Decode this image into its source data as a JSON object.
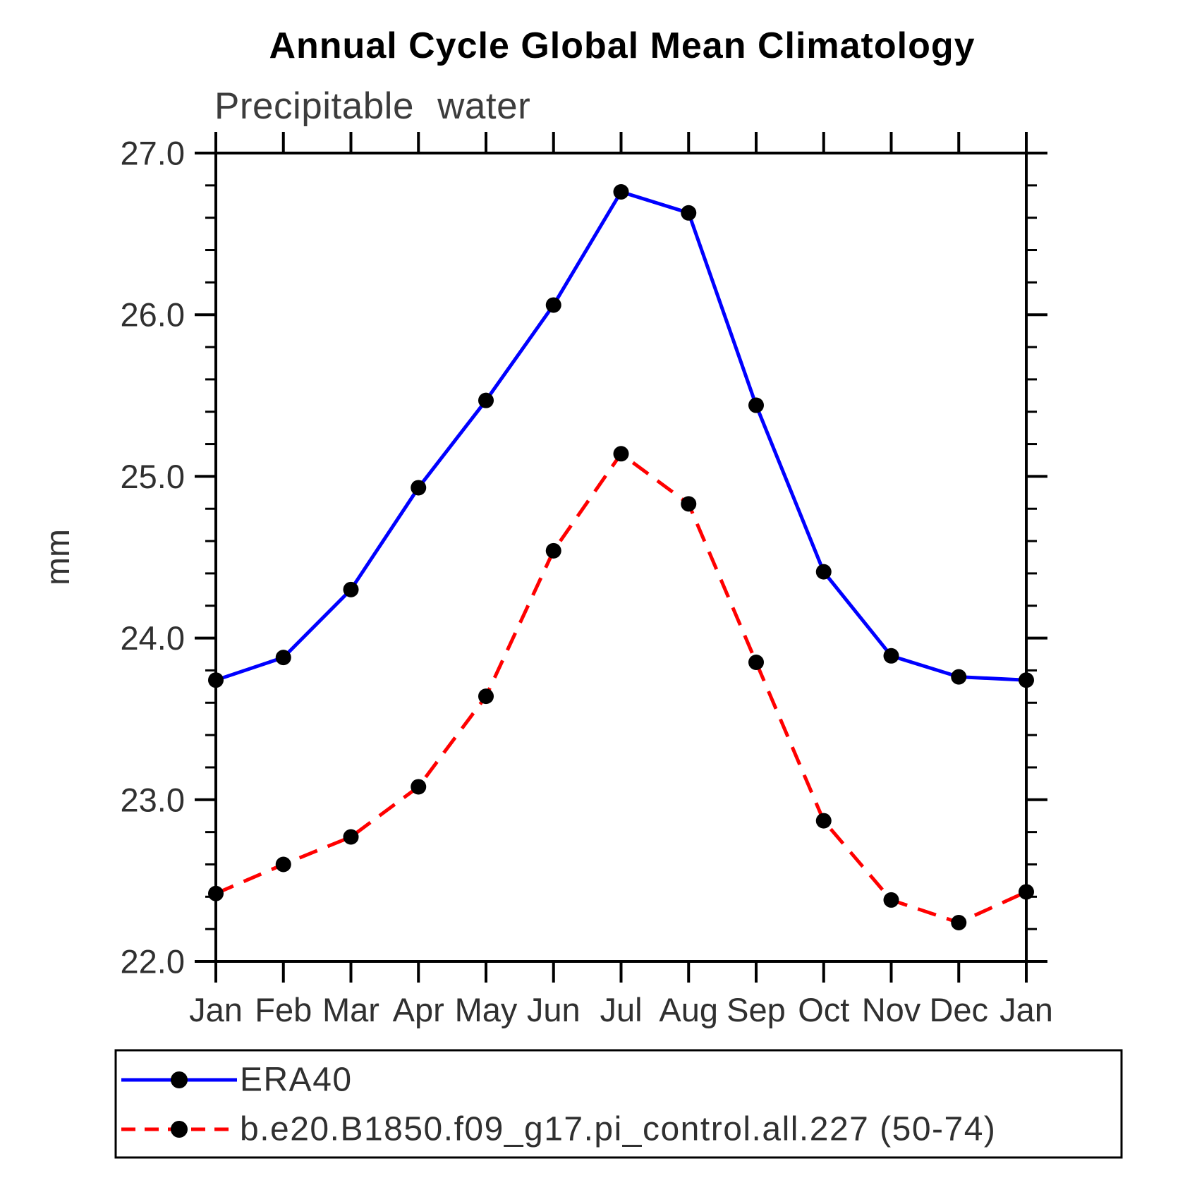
{
  "title": "Annual Cycle Global Mean Climatology",
  "subtitle": "Precipitable water",
  "ylabel": "mm",
  "chart_data": {
    "type": "line",
    "categories": [
      "Jan",
      "Feb",
      "Mar",
      "Apr",
      "May",
      "Jun",
      "Jul",
      "Aug",
      "Sep",
      "Oct",
      "Nov",
      "Dec",
      "Jan"
    ],
    "series": [
      {
        "id": "era40",
        "name": "ERA40",
        "color": "#0000ff",
        "line_style": "solid",
        "marker": "circle",
        "marker_color": "#000000",
        "values": [
          23.74,
          23.88,
          24.3,
          24.93,
          25.47,
          26.06,
          26.76,
          26.63,
          25.44,
          24.41,
          23.89,
          23.76,
          23.74
        ]
      },
      {
        "id": "pi-control",
        "name": "b.e20.B1850.f09_g17.pi_control.all.227 (50-74)",
        "color": "#ff0000",
        "line_style": "dashed",
        "marker": "circle",
        "marker_color": "#000000",
        "values": [
          22.42,
          22.6,
          22.77,
          23.08,
          23.64,
          24.54,
          25.14,
          24.83,
          23.85,
          22.87,
          22.38,
          22.24,
          22.43
        ]
      }
    ],
    "ylim": [
      22.0,
      27.0
    ],
    "ytick_major": [
      22.0,
      23.0,
      24.0,
      25.0,
      26.0,
      27.0
    ],
    "ytick_labels": [
      "22.0",
      "23.0",
      "24.0",
      "25.0",
      "26.0",
      "27.0"
    ],
    "ytick_minor_step": 0.2,
    "grid": false,
    "legend_position": "bottom",
    "axis_color": "#000000"
  }
}
